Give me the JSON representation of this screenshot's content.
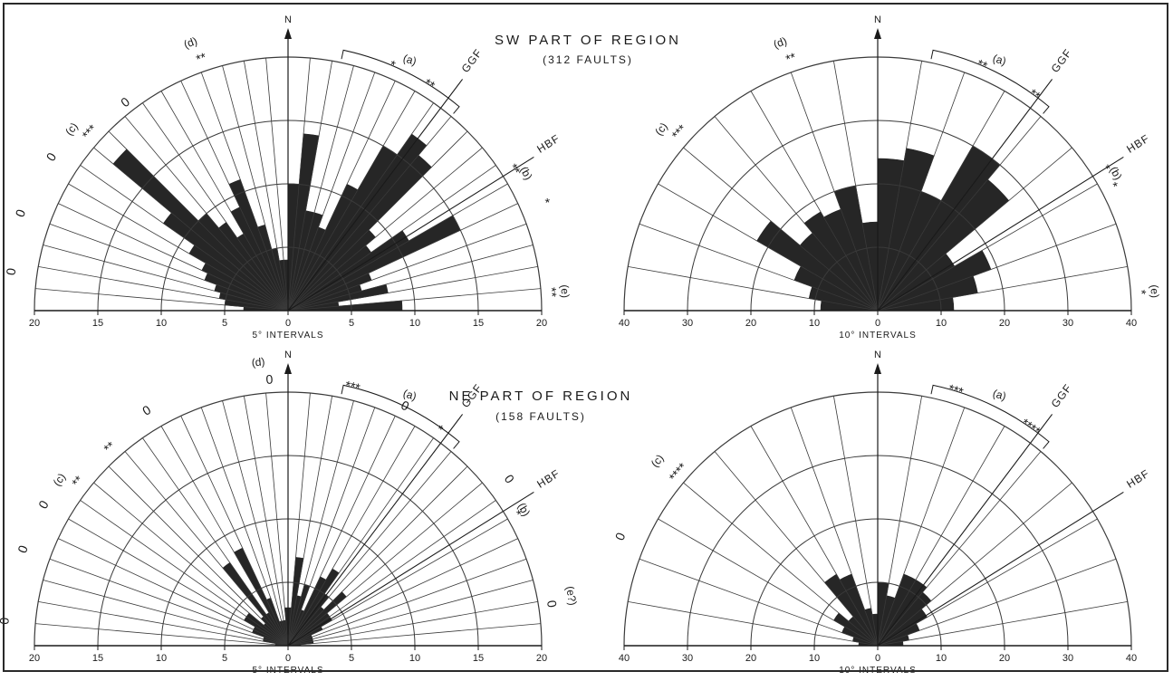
{
  "colors": {
    "ink": "#1a1a1a",
    "fill": "#262626",
    "grid": "#3a3a3a",
    "paper": "#ffffff"
  },
  "titles": {
    "sw_title": "SW PART OF REGION",
    "sw_subtitle": "(312 FAULTS)",
    "ne_title": "NE PART OF REGION",
    "ne_subtitle": "(158 FAULTS)"
  },
  "chart_data": [
    {
      "id": "sw5",
      "type": "rose-half",
      "north_label": "N",
      "xlabel": "5° INTERVALS",
      "bin_deg": 5,
      "rmax": 20,
      "rings": [
        5,
        10,
        15,
        20
      ],
      "tick_labels": [
        "20",
        "15",
        "10",
        "5",
        "0",
        "5",
        "10",
        "15",
        "20"
      ],
      "bins": [
        {
          "from": -90,
          "to": -85,
          "value": 3.5
        },
        {
          "from": -85,
          "to": -80,
          "value": 5
        },
        {
          "from": -80,
          "to": -75,
          "value": 5.5
        },
        {
          "from": -75,
          "to": -70,
          "value": 6
        },
        {
          "from": -70,
          "to": -65,
          "value": 7
        },
        {
          "from": -65,
          "to": -60,
          "value": 7.5
        },
        {
          "from": -60,
          "to": -55,
          "value": 9
        },
        {
          "from": -55,
          "to": -50,
          "value": 12
        },
        {
          "from": -50,
          "to": -45,
          "value": 18
        },
        {
          "from": -45,
          "to": -40,
          "value": 10
        },
        {
          "from": -40,
          "to": -35,
          "value": 8.5
        },
        {
          "from": -35,
          "to": -30,
          "value": 7
        },
        {
          "from": -30,
          "to": -25,
          "value": 9
        },
        {
          "from": -25,
          "to": -20,
          "value": 11
        },
        {
          "from": -20,
          "to": -15,
          "value": 7
        },
        {
          "from": -15,
          "to": -10,
          "value": 5
        },
        {
          "from": -10,
          "to": -5,
          "value": 4
        },
        {
          "from": -5,
          "to": 0,
          "value": 4
        },
        {
          "from": 0,
          "to": 5,
          "value": 10
        },
        {
          "from": 5,
          "to": 10,
          "value": 14
        },
        {
          "from": 10,
          "to": 15,
          "value": 8
        },
        {
          "from": 15,
          "to": 20,
          "value": 8
        },
        {
          "from": 20,
          "to": 25,
          "value": 7
        },
        {
          "from": 25,
          "to": 30,
          "value": 11
        },
        {
          "from": 30,
          "to": 35,
          "value": 15
        },
        {
          "from": 35,
          "to": 40,
          "value": 17
        },
        {
          "from": 40,
          "to": 45,
          "value": 16
        },
        {
          "from": 45,
          "to": 50,
          "value": 9
        },
        {
          "from": 50,
          "to": 55,
          "value": 8
        },
        {
          "from": 55,
          "to": 60,
          "value": 11
        },
        {
          "from": 60,
          "to": 65,
          "value": 15
        },
        {
          "from": 65,
          "to": 70,
          "value": 7
        },
        {
          "from": 70,
          "to": 75,
          "value": 6
        },
        {
          "from": 75,
          "to": 80,
          "value": 8
        },
        {
          "from": 80,
          "to": 85,
          "value": 4
        },
        {
          "from": 85,
          "to": 90,
          "value": 9
        }
      ],
      "fault_lines": [
        {
          "label": "GGF",
          "azimuth": 37
        },
        {
          "label": "HBF",
          "azimuth": 58
        }
      ],
      "bracket_label": "(a)",
      "group_labels": [
        "(c)",
        "(d)",
        "(b)",
        "(e)"
      ],
      "markers": [
        "*",
        "**",
        "**",
        "***",
        "*",
        "**",
        "**",
        "0",
        "0",
        "0",
        "0"
      ]
    },
    {
      "id": "sw10",
      "type": "rose-half",
      "north_label": "N",
      "xlabel": "10° INTERVALS",
      "bin_deg": 10,
      "rmax": 40,
      "rings": [
        10,
        20,
        30,
        40
      ],
      "tick_labels": [
        "40",
        "30",
        "20",
        "10",
        "0",
        "10",
        "20",
        "30",
        "40"
      ],
      "bins": [
        {
          "from": -90,
          "to": -80,
          "value": 9
        },
        {
          "from": -80,
          "to": -70,
          "value": 11
        },
        {
          "from": -70,
          "to": -60,
          "value": 14
        },
        {
          "from": -60,
          "to": -50,
          "value": 22
        },
        {
          "from": -50,
          "to": -40,
          "value": 16
        },
        {
          "from": -40,
          "to": -30,
          "value": 18
        },
        {
          "from": -30,
          "to": -20,
          "value": 17
        },
        {
          "from": -20,
          "to": -10,
          "value": 20
        },
        {
          "from": -10,
          "to": 0,
          "value": 14
        },
        {
          "from": 0,
          "to": 10,
          "value": 24
        },
        {
          "from": 10,
          "to": 20,
          "value": 26
        },
        {
          "from": 20,
          "to": 30,
          "value": 20
        },
        {
          "from": 30,
          "to": 40,
          "value": 30
        },
        {
          "from": 40,
          "to": 50,
          "value": 27
        },
        {
          "from": 50,
          "to": 60,
          "value": 14
        },
        {
          "from": 60,
          "to": 70,
          "value": 19
        },
        {
          "from": 70,
          "to": 80,
          "value": 16
        },
        {
          "from": 80,
          "to": 90,
          "value": 12
        }
      ],
      "fault_lines": [
        {
          "label": "GGF",
          "azimuth": 37
        },
        {
          "label": "HBF",
          "azimuth": 58
        }
      ],
      "bracket_label": "(a)",
      "group_labels": [
        "(c)",
        "(d)",
        "(b)",
        "(e)"
      ],
      "markers": [
        "***",
        "**",
        "**",
        "**",
        "*",
        "*",
        "*"
      ]
    },
    {
      "id": "ne5",
      "type": "rose-half",
      "north_label": "N",
      "xlabel": "5° INTERVALS",
      "bin_deg": 5,
      "rmax": 20,
      "rings": [
        5,
        10,
        15,
        20
      ],
      "tick_labels": [
        "20",
        "15",
        "10",
        "5",
        "0",
        "5",
        "10",
        "15",
        "20"
      ],
      "bins": [
        {
          "from": -90,
          "to": -85,
          "value": 1
        },
        {
          "from": -85,
          "to": -80,
          "value": 1
        },
        {
          "from": -80,
          "to": -75,
          "value": 2
        },
        {
          "from": -75,
          "to": -70,
          "value": 2
        },
        {
          "from": -70,
          "to": -65,
          "value": 3
        },
        {
          "from": -65,
          "to": -60,
          "value": 3
        },
        {
          "from": -60,
          "to": -55,
          "value": 4
        },
        {
          "from": -55,
          "to": -50,
          "value": 4
        },
        {
          "from": -50,
          "to": -45,
          "value": 2.5
        },
        {
          "from": -45,
          "to": -40,
          "value": 3
        },
        {
          "from": -40,
          "to": -35,
          "value": 8
        },
        {
          "from": -35,
          "to": -30,
          "value": 3
        },
        {
          "from": -30,
          "to": -25,
          "value": 8.5
        },
        {
          "from": -25,
          "to": -20,
          "value": 4
        },
        {
          "from": -20,
          "to": -15,
          "value": 2
        },
        {
          "from": -15,
          "to": -10,
          "value": 2
        },
        {
          "from": -10,
          "to": -5,
          "value": 2
        },
        {
          "from": -5,
          "to": 0,
          "value": 3
        },
        {
          "from": 0,
          "to": 5,
          "value": 3
        },
        {
          "from": 5,
          "to": 10,
          "value": 7
        },
        {
          "from": 10,
          "to": 15,
          "value": 4
        },
        {
          "from": 15,
          "to": 20,
          "value": 5
        },
        {
          "from": 20,
          "to": 25,
          "value": 3
        },
        {
          "from": 25,
          "to": 30,
          "value": 6
        },
        {
          "from": 30,
          "to": 35,
          "value": 7
        },
        {
          "from": 35,
          "to": 40,
          "value": 5
        },
        {
          "from": 40,
          "to": 45,
          "value": 4
        },
        {
          "from": 45,
          "to": 50,
          "value": 6
        },
        {
          "from": 50,
          "to": 55,
          "value": 4
        },
        {
          "from": 55,
          "to": 60,
          "value": 4
        },
        {
          "from": 60,
          "to": 65,
          "value": 3
        },
        {
          "from": 65,
          "to": 70,
          "value": 2
        },
        {
          "from": 70,
          "to": 75,
          "value": 2
        },
        {
          "from": 75,
          "to": 80,
          "value": 2
        },
        {
          "from": 80,
          "to": 85,
          "value": 2
        },
        {
          "from": 85,
          "to": 90,
          "value": 1
        }
      ],
      "fault_lines": [
        {
          "label": "GGF",
          "azimuth": 37
        },
        {
          "label": "HBF",
          "azimuth": 58
        }
      ],
      "bracket_label": "(a)",
      "group_labels": [
        "(c)",
        "(d)",
        "(b)",
        "(e?)"
      ],
      "markers": [
        "***",
        "**",
        "**",
        "*",
        "*",
        "0",
        "0",
        "0",
        "0",
        "0",
        "0",
        "0",
        "0"
      ]
    },
    {
      "id": "ne10",
      "type": "rose-half",
      "north_label": "N",
      "xlabel": "10° INTERVALS",
      "bin_deg": 10,
      "rmax": 40,
      "rings": [
        10,
        20,
        30,
        40
      ],
      "tick_labels": [
        "40",
        "30",
        "20",
        "10",
        "0",
        "10",
        "20",
        "30",
        "40"
      ],
      "bins": [
        {
          "from": -90,
          "to": -80,
          "value": 3
        },
        {
          "from": -80,
          "to": -70,
          "value": 4
        },
        {
          "from": -70,
          "to": -60,
          "value": 6
        },
        {
          "from": -60,
          "to": -50,
          "value": 8
        },
        {
          "from": -50,
          "to": -40,
          "value": 6
        },
        {
          "from": -40,
          "to": -30,
          "value": 13
        },
        {
          "from": -30,
          "to": -20,
          "value": 12
        },
        {
          "from": -20,
          "to": -10,
          "value": 6
        },
        {
          "from": -10,
          "to": 0,
          "value": 5
        },
        {
          "from": 0,
          "to": 10,
          "value": 10
        },
        {
          "from": 10,
          "to": 20,
          "value": 8
        },
        {
          "from": 20,
          "to": 30,
          "value": 12
        },
        {
          "from": 30,
          "to": 40,
          "value": 12
        },
        {
          "from": 40,
          "to": 50,
          "value": 11
        },
        {
          "from": 50,
          "to": 60,
          "value": 9
        },
        {
          "from": 60,
          "to": 70,
          "value": 7
        },
        {
          "from": 70,
          "to": 80,
          "value": 5
        },
        {
          "from": 80,
          "to": 90,
          "value": 4
        }
      ],
      "fault_lines": [
        {
          "label": "GGF",
          "azimuth": 37
        },
        {
          "label": "HBF",
          "azimuth": 58
        }
      ],
      "bracket_label": "(a)",
      "group_labels": [
        "(c)"
      ],
      "markers": [
        "****",
        "***",
        "****",
        "0"
      ]
    }
  ]
}
